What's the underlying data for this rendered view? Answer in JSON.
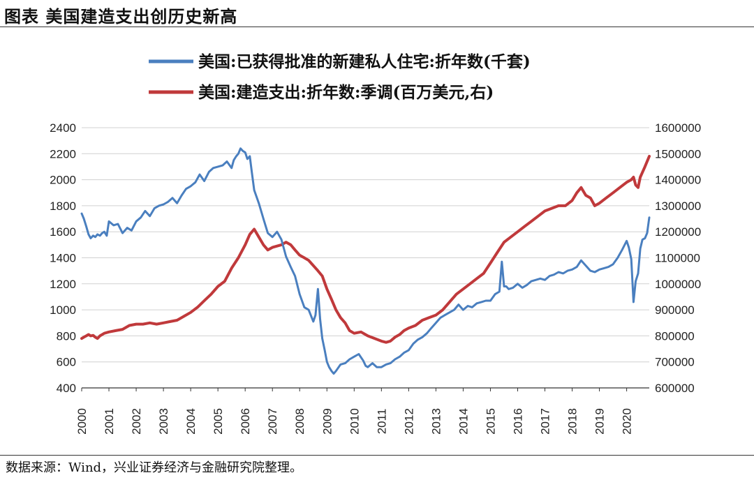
{
  "page": {
    "title": "图表  美国建造支出创历史新高",
    "source": "数据来源：Wind，兴业证券经济与金融研究院整理。"
  },
  "chart_data": {
    "type": "line",
    "title": "",
    "xlabel": "",
    "ylabel_left": "",
    "ylabel_right": "",
    "grid": "horizontal",
    "legend_position": "top-center",
    "x_range": [
      2000,
      2020.83
    ],
    "x_ticks": [
      "2000",
      "2001",
      "2002",
      "2003",
      "2004",
      "2005",
      "2006",
      "2007",
      "2008",
      "2009",
      "2010",
      "2011",
      "2012",
      "2013",
      "2014",
      "2015",
      "2016",
      "2017",
      "2018",
      "2019",
      "2020"
    ],
    "y_left": {
      "range": [
        400,
        2400
      ],
      "ticks": [
        "400",
        "600",
        "800",
        "1000",
        "1200",
        "1400",
        "1600",
        "1800",
        "2000",
        "2200",
        "2400"
      ]
    },
    "y_right": {
      "range": [
        600000,
        1600000
      ],
      "ticks": [
        "600000",
        "700000",
        "800000",
        "900000",
        "1000000",
        "1100000",
        "1200000",
        "1300000",
        "1400000",
        "1500000",
        "1600000"
      ]
    },
    "series": [
      {
        "name": "美国:已获得批准的新建私人住宅:折年数(千套)",
        "axis": "left",
        "color": "#4a7fbf",
        "x": [
          2000.0,
          2000.08,
          2000.17,
          2000.25,
          2000.33,
          2000.42,
          2000.5,
          2000.58,
          2000.67,
          2000.75,
          2000.83,
          2000.92,
          2001.0,
          2001.17,
          2001.33,
          2001.5,
          2001.67,
          2001.83,
          2002.0,
          2002.17,
          2002.33,
          2002.5,
          2002.67,
          2002.83,
          2003.0,
          2003.17,
          2003.33,
          2003.5,
          2003.67,
          2003.83,
          2004.0,
          2004.17,
          2004.33,
          2004.5,
          2004.67,
          2004.83,
          2005.0,
          2005.17,
          2005.33,
          2005.5,
          2005.58,
          2005.67,
          2005.75,
          2005.83,
          2005.92,
          2006.0,
          2006.08,
          2006.17,
          2006.25,
          2006.33,
          2006.5,
          2006.67,
          2006.83,
          2007.0,
          2007.17,
          2007.33,
          2007.5,
          2007.67,
          2007.83,
          2008.0,
          2008.17,
          2008.33,
          2008.5,
          2008.58,
          2008.67,
          2008.75,
          2008.83,
          2008.92,
          2009.0,
          2009.08,
          2009.17,
          2009.25,
          2009.33,
          2009.5,
          2009.67,
          2009.83,
          2010.0,
          2010.17,
          2010.33,
          2010.42,
          2010.5,
          2010.67,
          2010.83,
          2011.0,
          2011.17,
          2011.33,
          2011.5,
          2011.67,
          2011.83,
          2012.0,
          2012.17,
          2012.33,
          2012.5,
          2012.67,
          2012.83,
          2013.0,
          2013.17,
          2013.33,
          2013.5,
          2013.67,
          2013.83,
          2014.0,
          2014.17,
          2014.33,
          2014.5,
          2014.67,
          2014.83,
          2015.0,
          2015.17,
          2015.33,
          2015.42,
          2015.5,
          2015.58,
          2015.67,
          2015.83,
          2016.0,
          2016.17,
          2016.33,
          2016.5,
          2016.67,
          2016.83,
          2017.0,
          2017.17,
          2017.33,
          2017.5,
          2017.67,
          2017.83,
          2018.0,
          2018.17,
          2018.33,
          2018.5,
          2018.67,
          2018.83,
          2019.0,
          2019.17,
          2019.33,
          2019.5,
          2019.67,
          2019.83,
          2020.0,
          2020.08,
          2020.17,
          2020.25,
          2020.33,
          2020.42,
          2020.5,
          2020.58,
          2020.67,
          2020.75,
          2020.83
        ],
        "values": [
          1740,
          1700,
          1640,
          1580,
          1550,
          1570,
          1560,
          1580,
          1570,
          1590,
          1600,
          1570,
          1680,
          1650,
          1660,
          1590,
          1630,
          1610,
          1680,
          1710,
          1760,
          1720,
          1780,
          1800,
          1810,
          1830,
          1860,
          1820,
          1880,
          1930,
          1950,
          1980,
          2040,
          1990,
          2060,
          2090,
          2100,
          2110,
          2140,
          2090,
          2150,
          2180,
          2200,
          2240,
          2220,
          2210,
          2160,
          2180,
          2050,
          1920,
          1820,
          1700,
          1590,
          1560,
          1600,
          1540,
          1410,
          1330,
          1260,
          1120,
          1020,
          1000,
          910,
          960,
          1160,
          930,
          780,
          690,
          600,
          560,
          530,
          510,
          530,
          580,
          590,
          620,
          640,
          660,
          610,
          570,
          560,
          590,
          560,
          560,
          580,
          590,
          620,
          640,
          670,
          690,
          740,
          770,
          790,
          820,
          860,
          900,
          940,
          960,
          980,
          1000,
          1040,
          1000,
          1030,
          1020,
          1050,
          1060,
          1070,
          1070,
          1120,
          1140,
          1370,
          1180,
          1180,
          1160,
          1170,
          1200,
          1170,
          1190,
          1220,
          1230,
          1240,
          1230,
          1260,
          1270,
          1290,
          1280,
          1300,
          1310,
          1330,
          1380,
          1340,
          1300,
          1290,
          1310,
          1320,
          1330,
          1350,
          1400,
          1460,
          1530,
          1480,
          1390,
          1060,
          1220,
          1280,
          1470,
          1540,
          1550,
          1590,
          1710
        ]
      },
      {
        "name": "美国:建造支出:折年数:季调(百万美元,右)",
        "axis": "right",
        "color": "#c0393b",
        "x": [
          2000.0,
          2000.08,
          2000.17,
          2000.25,
          2000.33,
          2000.42,
          2000.5,
          2000.58,
          2000.67,
          2000.83,
          2001.0,
          2001.25,
          2001.5,
          2001.75,
          2002.0,
          2002.25,
          2002.5,
          2002.75,
          2003.0,
          2003.25,
          2003.5,
          2003.75,
          2004.0,
          2004.25,
          2004.5,
          2004.75,
          2005.0,
          2005.25,
          2005.5,
          2005.75,
          2006.0,
          2006.17,
          2006.33,
          2006.5,
          2006.67,
          2006.83,
          2007.0,
          2007.17,
          2007.33,
          2007.5,
          2007.67,
          2007.83,
          2008.0,
          2008.17,
          2008.33,
          2008.5,
          2008.67,
          2008.83,
          2009.0,
          2009.17,
          2009.33,
          2009.5,
          2009.67,
          2009.83,
          2010.0,
          2010.25,
          2010.5,
          2010.75,
          2011.0,
          2011.17,
          2011.33,
          2011.5,
          2011.67,
          2011.83,
          2012.0,
          2012.25,
          2012.5,
          2012.75,
          2013.0,
          2013.25,
          2013.5,
          2013.75,
          2014.0,
          2014.25,
          2014.5,
          2014.75,
          2015.0,
          2015.25,
          2015.5,
          2015.75,
          2016.0,
          2016.25,
          2016.5,
          2016.75,
          2017.0,
          2017.25,
          2017.5,
          2017.75,
          2018.0,
          2018.17,
          2018.33,
          2018.5,
          2018.67,
          2018.83,
          2019.0,
          2019.25,
          2019.5,
          2019.75,
          2020.0,
          2020.17,
          2020.25,
          2020.33,
          2020.42,
          2020.5,
          2020.67,
          2020.83
        ],
        "values": [
          790000,
          795000,
          800000,
          805000,
          800000,
          802000,
          795000,
          790000,
          800000,
          810000,
          815000,
          820000,
          825000,
          840000,
          845000,
          845000,
          850000,
          845000,
          850000,
          855000,
          860000,
          875000,
          890000,
          910000,
          935000,
          960000,
          990000,
          1010000,
          1060000,
          1100000,
          1150000,
          1190000,
          1210000,
          1180000,
          1150000,
          1130000,
          1140000,
          1145000,
          1150000,
          1160000,
          1150000,
          1130000,
          1110000,
          1100000,
          1090000,
          1070000,
          1050000,
          1030000,
          980000,
          940000,
          900000,
          870000,
          850000,
          820000,
          810000,
          815000,
          800000,
          790000,
          780000,
          775000,
          780000,
          795000,
          805000,
          820000,
          830000,
          840000,
          860000,
          870000,
          880000,
          900000,
          930000,
          960000,
          980000,
          1000000,
          1020000,
          1040000,
          1080000,
          1120000,
          1160000,
          1180000,
          1200000,
          1220000,
          1240000,
          1260000,
          1280000,
          1290000,
          1300000,
          1300000,
          1320000,
          1350000,
          1370000,
          1340000,
          1330000,
          1300000,
          1310000,
          1330000,
          1350000,
          1370000,
          1390000,
          1400000,
          1410000,
          1380000,
          1370000,
          1410000,
          1450000,
          1490000
        ]
      }
    ]
  }
}
